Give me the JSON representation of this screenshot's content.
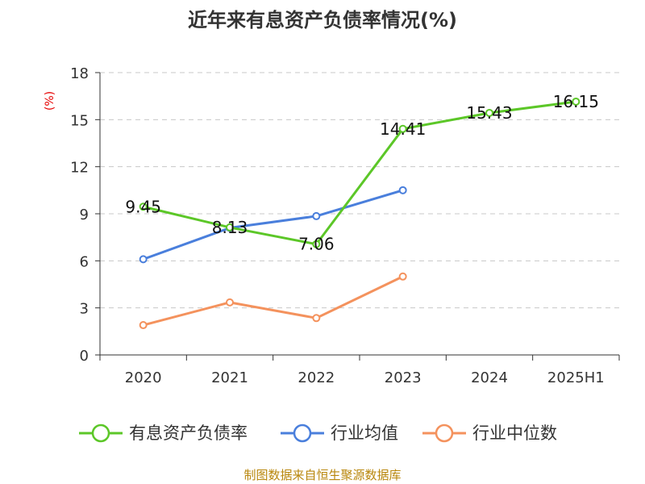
{
  "chart_data": {
    "type": "line",
    "title": "近年来有息资产负债率情况(%)",
    "unit_label": "(%)",
    "categories": [
      "2020",
      "2021",
      "2022",
      "2023",
      "2024",
      "2025H1"
    ],
    "ylim": [
      0,
      18
    ],
    "yticks": [
      0,
      3,
      6,
      9,
      12,
      15,
      18
    ],
    "grid": true,
    "legend_position": "bottom",
    "series": [
      {
        "name": "有息资产负债率",
        "color": "#5cc728",
        "values": [
          9.45,
          8.13,
          7.06,
          14.41,
          15.43,
          16.15
        ],
        "labels": [
          "9.45",
          "8.13",
          "7.06",
          "14.41",
          "15.43",
          "16.15"
        ]
      },
      {
        "name": "行业均值",
        "color": "#4a7fdc",
        "values": [
          6.1,
          8.1,
          8.85,
          10.5,
          null,
          null
        ]
      },
      {
        "name": "行业中位数",
        "color": "#f4925d",
        "values": [
          1.9,
          3.35,
          2.35,
          5.0,
          null,
          null
        ]
      }
    ]
  },
  "source": "制图数据来自恒生聚源数据库"
}
